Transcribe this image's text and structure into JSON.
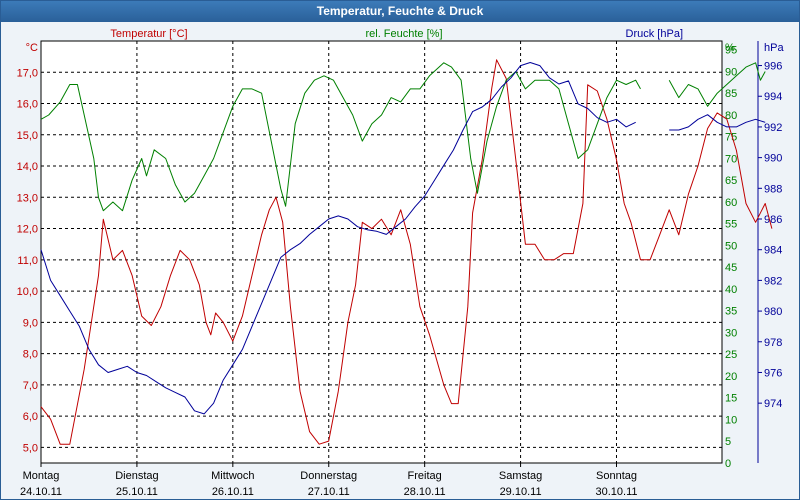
{
  "window": {
    "title": "Temperatur, Feuchte & Druck"
  },
  "chart_data": {
    "type": "line",
    "title": "Temperatur, Feuchte & Druck",
    "grid": true,
    "x": {
      "ticks": [
        {
          "day": "Montag",
          "date": "24.10.11"
        },
        {
          "day": "Dienstag",
          "date": "25.10.11"
        },
        {
          "day": "Mittwoch",
          "date": "26.10.11"
        },
        {
          "day": "Donnerstag",
          "date": "27.10.11"
        },
        {
          "day": "Freitag",
          "date": "28.10.11"
        },
        {
          "day": "Samstag",
          "date": "29.10.11"
        },
        {
          "day": "Sonntag",
          "date": "30.10.11"
        }
      ],
      "range_days": [
        0,
        7.1
      ]
    },
    "axes": {
      "temperature": {
        "label": "Temperatur [°C]",
        "unit": "°C",
        "color": "#c00000",
        "ylim": [
          4.5,
          18.0
        ],
        "ticks": [
          "17,0",
          "16,0",
          "15,0",
          "14,0",
          "13,0",
          "12,0",
          "11,0",
          "10,0",
          "9,0",
          "8,0",
          "7,0",
          "6,0",
          "5,0"
        ]
      },
      "humidity": {
        "label": "rel. Feuchte [%]",
        "unit": "%",
        "color": "#008000",
        "ylim": [
          0,
          97
        ],
        "ticks": [
          "95",
          "90",
          "85",
          "80",
          "75",
          "70",
          "65",
          "60",
          "55",
          "50",
          "45",
          "40",
          "35",
          "30",
          "25",
          "20",
          "15",
          "10",
          "5",
          "0"
        ]
      },
      "pressure": {
        "label": "Druck [hPa]",
        "unit": "hPa",
        "color": "#000099",
        "ylim": [
          970.1,
          997.6
        ],
        "ticks": [
          "996",
          "994",
          "992",
          "990",
          "988",
          "986",
          "984",
          "982",
          "980",
          "978",
          "976",
          "974"
        ]
      }
    },
    "series": [
      {
        "name": "Temperatur",
        "axis": "temperature",
        "color": "#c00000",
        "points": [
          [
            0.0,
            6.3
          ],
          [
            0.1,
            5.9
          ],
          [
            0.2,
            5.1
          ],
          [
            0.3,
            5.1
          ],
          [
            0.45,
            7.5
          ],
          [
            0.6,
            10.5
          ],
          [
            0.65,
            12.3
          ],
          [
            0.75,
            11.0
          ],
          [
            0.85,
            11.3
          ],
          [
            0.95,
            10.5
          ],
          [
            1.05,
            9.2
          ],
          [
            1.15,
            8.9
          ],
          [
            1.25,
            9.5
          ],
          [
            1.35,
            10.5
          ],
          [
            1.45,
            11.3
          ],
          [
            1.55,
            11.0
          ],
          [
            1.65,
            10.2
          ],
          [
            1.72,
            9.0
          ],
          [
            1.77,
            8.6
          ],
          [
            1.82,
            9.3
          ],
          [
            1.9,
            9.0
          ],
          [
            2.0,
            8.4
          ],
          [
            2.1,
            9.2
          ],
          [
            2.2,
            10.5
          ],
          [
            2.3,
            11.8
          ],
          [
            2.38,
            12.6
          ],
          [
            2.45,
            13.0
          ],
          [
            2.52,
            12.2
          ],
          [
            2.6,
            9.5
          ],
          [
            2.7,
            6.8
          ],
          [
            2.8,
            5.5
          ],
          [
            2.9,
            5.1
          ],
          [
            3.0,
            5.2
          ],
          [
            3.1,
            6.8
          ],
          [
            3.2,
            9.0
          ],
          [
            3.28,
            10.2
          ],
          [
            3.35,
            12.2
          ],
          [
            3.45,
            12.0
          ],
          [
            3.55,
            12.3
          ],
          [
            3.65,
            11.8
          ],
          [
            3.75,
            12.6
          ],
          [
            3.85,
            11.5
          ],
          [
            3.95,
            9.5
          ],
          [
            4.05,
            8.6
          ],
          [
            4.2,
            7.0
          ],
          [
            4.28,
            6.4
          ],
          [
            4.35,
            6.4
          ],
          [
            4.45,
            9.5
          ],
          [
            4.5,
            12.5
          ],
          [
            4.6,
            14.2
          ],
          [
            4.7,
            16.5
          ],
          [
            4.75,
            17.4
          ],
          [
            4.85,
            16.8
          ],
          [
            4.95,
            14.2
          ],
          [
            5.05,
            11.5
          ],
          [
            5.15,
            11.5
          ],
          [
            5.25,
            11.0
          ],
          [
            5.35,
            11.0
          ],
          [
            5.45,
            11.2
          ],
          [
            5.55,
            11.2
          ],
          [
            5.65,
            12.8
          ],
          [
            5.7,
            16.6
          ],
          [
            5.8,
            16.4
          ],
          [
            5.9,
            15.5
          ],
          [
            6.0,
            14.2
          ],
          [
            6.08,
            12.8
          ],
          [
            6.15,
            12.2
          ],
          [
            6.25,
            11.0
          ],
          [
            6.35,
            11.0
          ],
          [
            6.45,
            11.8
          ],
          [
            6.55,
            12.6
          ],
          [
            6.65,
            11.8
          ],
          [
            6.75,
            13.1
          ],
          [
            6.85,
            14.0
          ],
          [
            6.95,
            15.2
          ],
          [
            7.05,
            15.7
          ],
          [
            7.15,
            15.5
          ],
          [
            7.25,
            14.5
          ],
          [
            7.35,
            12.8
          ],
          [
            7.45,
            12.2
          ],
          [
            7.55,
            12.8
          ],
          [
            7.62,
            12.0
          ]
        ]
      },
      {
        "name": "rel. Feuchte",
        "axis": "humidity",
        "color": "#008000",
        "points": [
          [
            0.0,
            79
          ],
          [
            0.08,
            80
          ],
          [
            0.2,
            83
          ],
          [
            0.3,
            87
          ],
          [
            0.38,
            87
          ],
          [
            0.45,
            80
          ],
          [
            0.55,
            70
          ],
          [
            0.6,
            61
          ],
          [
            0.65,
            58
          ],
          [
            0.75,
            60
          ],
          [
            0.85,
            58
          ],
          [
            0.95,
            65
          ],
          [
            1.05,
            70
          ],
          [
            1.1,
            66
          ],
          [
            1.18,
            72
          ],
          [
            1.3,
            70
          ],
          [
            1.4,
            64
          ],
          [
            1.5,
            60
          ],
          [
            1.6,
            62
          ],
          [
            1.7,
            66
          ],
          [
            1.8,
            70
          ],
          [
            1.9,
            76
          ],
          [
            2.0,
            82
          ],
          [
            2.1,
            86
          ],
          [
            2.2,
            86
          ],
          [
            2.3,
            85
          ],
          [
            2.4,
            74
          ],
          [
            2.5,
            63
          ],
          [
            2.55,
            59
          ],
          [
            2.65,
            78
          ],
          [
            2.75,
            85
          ],
          [
            2.85,
            88
          ],
          [
            2.95,
            89
          ],
          [
            3.05,
            88
          ],
          [
            3.15,
            84
          ],
          [
            3.25,
            80
          ],
          [
            3.35,
            74
          ],
          [
            3.45,
            78
          ],
          [
            3.55,
            80
          ],
          [
            3.65,
            84
          ],
          [
            3.75,
            83
          ],
          [
            3.85,
            86
          ],
          [
            3.95,
            86
          ],
          [
            4.05,
            89
          ],
          [
            4.15,
            91
          ],
          [
            4.2,
            92
          ],
          [
            4.28,
            91
          ],
          [
            4.38,
            88
          ],
          [
            4.48,
            70
          ],
          [
            4.55,
            62
          ],
          [
            4.65,
            74
          ],
          [
            4.75,
            82
          ],
          [
            4.85,
            88
          ],
          [
            4.95,
            90
          ],
          [
            5.05,
            86
          ],
          [
            5.15,
            88
          ],
          [
            5.3,
            88
          ],
          [
            5.4,
            86
          ],
          [
            5.5,
            78
          ],
          [
            5.6,
            70
          ],
          [
            5.7,
            72
          ],
          [
            5.8,
            78
          ],
          [
            5.9,
            84
          ],
          [
            6.0,
            88
          ],
          [
            6.1,
            87
          ],
          [
            6.2,
            88
          ],
          [
            6.25,
            86
          ],
          [
            6.55,
            88
          ],
          [
            6.65,
            84
          ],
          [
            6.75,
            87
          ],
          [
            6.85,
            86
          ],
          [
            6.95,
            82
          ],
          [
            7.05,
            85
          ],
          [
            7.15,
            87
          ],
          [
            7.25,
            89
          ],
          [
            7.35,
            91
          ],
          [
            7.45,
            92
          ],
          [
            7.5,
            88
          ],
          [
            7.55,
            90
          ]
        ]
      },
      {
        "name": "Druck",
        "axis": "pressure",
        "color": "#000099",
        "points": [
          [
            0.0,
            984.0
          ],
          [
            0.1,
            982.0
          ],
          [
            0.2,
            981.0
          ],
          [
            0.3,
            980.0
          ],
          [
            0.4,
            979.0
          ],
          [
            0.5,
            977.5
          ],
          [
            0.6,
            976.5
          ],
          [
            0.7,
            976.0
          ],
          [
            0.8,
            976.2
          ],
          [
            0.9,
            976.4
          ],
          [
            1.0,
            976.0
          ],
          [
            1.1,
            975.8
          ],
          [
            1.2,
            975.4
          ],
          [
            1.3,
            975.0
          ],
          [
            1.4,
            974.7
          ],
          [
            1.5,
            974.4
          ],
          [
            1.6,
            973.5
          ],
          [
            1.7,
            973.3
          ],
          [
            1.8,
            974.0
          ],
          [
            1.9,
            975.5
          ],
          [
            2.0,
            976.5
          ],
          [
            2.1,
            977.5
          ],
          [
            2.2,
            979.0
          ],
          [
            2.3,
            980.5
          ],
          [
            2.4,
            982.0
          ],
          [
            2.5,
            983.5
          ],
          [
            2.6,
            984.0
          ],
          [
            2.7,
            984.4
          ],
          [
            2.8,
            985.0
          ],
          [
            2.9,
            985.5
          ],
          [
            3.0,
            986.0
          ],
          [
            3.1,
            986.2
          ],
          [
            3.2,
            986.0
          ],
          [
            3.3,
            985.5
          ],
          [
            3.4,
            985.3
          ],
          [
            3.5,
            985.2
          ],
          [
            3.6,
            985.0
          ],
          [
            3.7,
            985.5
          ],
          [
            3.8,
            986.0
          ],
          [
            3.9,
            986.8
          ],
          [
            4.0,
            987.5
          ],
          [
            4.1,
            988.5
          ],
          [
            4.2,
            989.5
          ],
          [
            4.3,
            990.5
          ],
          [
            4.4,
            991.8
          ],
          [
            4.5,
            993.0
          ],
          [
            4.6,
            993.3
          ],
          [
            4.7,
            993.8
          ],
          [
            4.8,
            994.6
          ],
          [
            4.9,
            995.2
          ],
          [
            5.0,
            996.0
          ],
          [
            5.1,
            996.2
          ],
          [
            5.2,
            996.0
          ],
          [
            5.3,
            995.2
          ],
          [
            5.4,
            994.8
          ],
          [
            5.5,
            995.0
          ],
          [
            5.6,
            993.5
          ],
          [
            5.7,
            993.2
          ],
          [
            5.8,
            992.6
          ],
          [
            5.9,
            992.3
          ],
          [
            6.0,
            992.5
          ],
          [
            6.1,
            992.0
          ],
          [
            6.2,
            992.3
          ],
          [
            6.55,
            991.8
          ],
          [
            6.65,
            991.8
          ],
          [
            6.75,
            992.0
          ],
          [
            6.85,
            992.5
          ],
          [
            6.95,
            992.8
          ],
          [
            7.05,
            992.3
          ],
          [
            7.15,
            992.0
          ],
          [
            7.25,
            992.0
          ],
          [
            7.35,
            992.3
          ],
          [
            7.45,
            992.5
          ],
          [
            7.55,
            992.3
          ]
        ]
      }
    ]
  }
}
